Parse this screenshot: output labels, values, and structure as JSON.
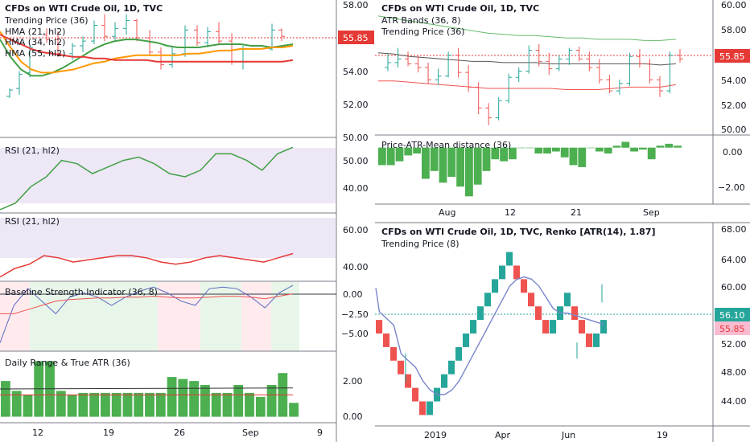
{
  "colors": {
    "up": "#26a69a",
    "down": "#ef5350",
    "green_bar": "#4caf50",
    "rsi_green": "#43a047",
    "rsi_red": "#e53935",
    "hma21": "#43a047",
    "hma34": "#ff9800",
    "hma55": "#e53935",
    "trend_gray": "#555555",
    "atr_upper": "#66bb6a",
    "atr_lower": "#ef5350",
    "renko_trend": "#7986cb",
    "baseline_line": "#5c6bc0",
    "baseline_ref": "#ef5350",
    "rsi_band_fill": "#ede7f6",
    "bg_green": "#e8f5e9",
    "bg_red": "#ffebee",
    "price_red": "#e53935",
    "price_green": "#26a69a",
    "price_pink": "#f8bbd0"
  },
  "left": {
    "price": {
      "title": "CFDs on WTI Crude Oil, 1D, TVC",
      "legend": [
        "Trending Price (36)",
        "HMA (21, hl2)",
        "HMA (34, hl2)",
        "HMA (55, hl2)"
      ],
      "yticks": [
        "58.00",
        "56.00",
        "54.00",
        "52.00",
        "50.00"
      ],
      "current": "55.85"
    },
    "rsi1": {
      "title": "RSI (21, hl2)",
      "yticks": [
        "50.00",
        "40.00"
      ]
    },
    "rsi2": {
      "title": "RSI (21, hl2)",
      "yticks": [
        "60.00",
        "40.00"
      ]
    },
    "baseline": {
      "title": "Baseline Strength Indicator (36, 8)",
      "yticks": [
        "0.00",
        "−2.50",
        "−5.00"
      ]
    },
    "atr": {
      "title": "Daily Range & True ATR (36)",
      "yticks": [
        "2.00",
        "0.00"
      ]
    },
    "xticks": [
      "12",
      "19",
      "26",
      "Sep",
      "9"
    ]
  },
  "right_top": {
    "price": {
      "title": "CFDs on WTI Crude Oil, 1D, TVC",
      "legend": [
        "ATR Bands (36, 8)",
        "Trending Price (36)"
      ],
      "yticks": [
        "60.00",
        "58.00",
        "56.00",
        "54.00",
        "52.00",
        "50.00"
      ],
      "current": "55.85"
    },
    "meandist": {
      "title": "Price-ATR-Mean distance (36)",
      "yticks": [
        "0.00",
        "−2.00"
      ]
    },
    "xticks": [
      "Aug",
      "12",
      "21",
      "Sep"
    ]
  },
  "renko": {
    "title": "CFDs on WTI Crude Oil, 1D, TVC, Renko [ATR(14), 1.87]",
    "legend": [
      "Trending Price (8)"
    ],
    "yticks": [
      "68.00",
      "64.00",
      "60.00",
      "56.00",
      "52.00",
      "48.00",
      "44.00"
    ],
    "current_green": "56.10",
    "current_red": "55.85",
    "xticks": [
      "2019",
      "Apr",
      "Jun",
      "19"
    ]
  },
  "chart_data": [
    {
      "type": "candlestick",
      "title": "CFDs on WTI Crude Oil, 1D, TVC",
      "ylim": [
        49.5,
        58.2
      ],
      "series": [
        {
          "name": "Trending Price (36)"
        },
        {
          "name": "HMA (21, hl2)",
          "values": [
            55.7,
            54.6,
            53.8,
            53.4,
            53.4,
            53.6,
            53.9,
            54.3,
            54.7,
            55.1,
            55.4,
            55.6,
            55.7,
            55.7,
            55.6,
            55.5,
            55.3,
            55.2,
            55.2,
            55.2,
            55.3,
            55.4,
            55.4,
            55.4,
            55.3,
            55.3,
            55.2,
            55.3,
            55.4
          ]
        },
        {
          "name": "HMA (34, hl2)",
          "values": [
            56.2,
            55.2,
            54.3,
            53.8,
            53.6,
            53.6,
            53.7,
            53.8,
            54.0,
            54.2,
            54.3,
            54.5,
            54.6,
            54.7,
            54.7,
            54.7,
            54.7,
            54.7,
            54.8,
            54.8,
            54.9,
            55.0,
            55.0,
            55.1,
            55.1,
            55.1,
            55.2,
            55.2,
            55.3
          ]
        },
        {
          "name": "HMA (55, hl2)",
          "values": [
            56.0,
            55.7,
            55.4,
            55.1,
            54.9,
            54.8,
            54.7,
            54.6,
            54.6,
            54.5,
            54.5,
            54.4,
            54.4,
            54.4,
            54.4,
            54.3,
            54.3,
            54.3,
            54.3,
            54.3,
            54.3,
            54.3,
            54.3,
            54.3,
            54.3,
            54.3,
            54.3,
            54.3,
            54.4
          ]
        }
      ],
      "current_price": 55.85
    },
    {
      "type": "line",
      "title": "RSI (21, hl2)",
      "ylim": [
        33,
        56
      ],
      "values": [
        34,
        36,
        41,
        44,
        49,
        48,
        45,
        47,
        49,
        50,
        48,
        45,
        44,
        46,
        51,
        51,
        49,
        46,
        51,
        53
      ]
    },
    {
      "type": "line",
      "title": "RSI (21, hl2)",
      "ylim": [
        38,
        70
      ],
      "values": [
        40,
        44,
        46,
        50,
        49,
        47,
        48,
        49,
        50,
        50,
        49,
        47,
        46,
        47,
        49,
        50,
        49,
        48,
        47,
        49,
        51
      ]
    },
    {
      "type": "line",
      "title": "Baseline Strength Indicator (36, 8)",
      "ylim": [
        -7.5,
        0.8
      ],
      "series": [
        {
          "values": [
            -6.5,
            -2.0,
            0.0,
            -1.5,
            -3.0,
            -1.0,
            -0.5,
            -1.0,
            -2.0,
            -1.0,
            -0.3,
            0.2,
            -0.5,
            -1.5,
            -2.0,
            0.0,
            0.2,
            0.0,
            -1.0,
            -2.3,
            -0.5,
            0.4
          ]
        },
        {
          "values": [
            -3.0,
            -3.0,
            -2.5,
            -2.0,
            -1.5,
            -1.3,
            -1.2,
            -1.1,
            -1.1,
            -1.0,
            -1.0,
            -0.9,
            -1.0,
            -1.1,
            -1.1,
            -1.0,
            -0.9,
            -0.9,
            -1.0,
            -1.2,
            -0.9,
            -0.6
          ]
        }
      ]
    },
    {
      "type": "bar",
      "title": "Daily Range & True ATR (36)",
      "ylim": [
        -0.3,
        3.3
      ],
      "values": [
        1.8,
        1.3,
        1.1,
        2.8,
        2.8,
        1.3,
        1.1,
        1.2,
        1.2,
        1.2,
        1.2,
        1.2,
        1.2,
        1.2,
        1.2,
        2.0,
        1.9,
        1.8,
        1.6,
        1.2,
        1.2,
        1.6,
        1.2,
        1.0,
        1.6,
        2.2,
        0.7
      ]
    },
    {
      "type": "candlestick",
      "title": "CFDs on WTI Crude Oil, 1D, TVC",
      "ylim": [
        49.7,
        60.7
      ],
      "series": [
        {
          "name": "ATR Bands (36, 8)"
        },
        {
          "name": "Trending Price (36)"
        }
      ],
      "current_price": 55.85
    },
    {
      "type": "bar",
      "title": "Price-ATR-Mean distance (36)",
      "ylim": [
        -2.9,
        0.65
      ],
      "values": [
        -0.9,
        -0.9,
        -0.7,
        -0.4,
        -0.3,
        -1.6,
        -1.2,
        -1.8,
        -1.5,
        -2.0,
        -2.5,
        -1.9,
        -1.2,
        -0.6,
        -0.7,
        -0.6,
        0.0,
        0.0,
        -0.3,
        -0.3,
        -0.2,
        -0.5,
        -0.9,
        -1.0,
        0.0,
        -0.2,
        -0.3,
        0.1,
        0.3,
        -0.2,
        -0.1,
        -0.6,
        0.1,
        0.2,
        0.1
      ]
    },
    {
      "type": "renko",
      "title": "CFDs on WTI Crude Oil, 1D, TVC, Renko [ATR(14), 1.87]",
      "ylim": [
        41.5,
        69.5
      ],
      "box_size": 1.87,
      "series": [
        {
          "name": "Trending Price (8)"
        }
      ],
      "current_price": 56.1
    }
  ]
}
